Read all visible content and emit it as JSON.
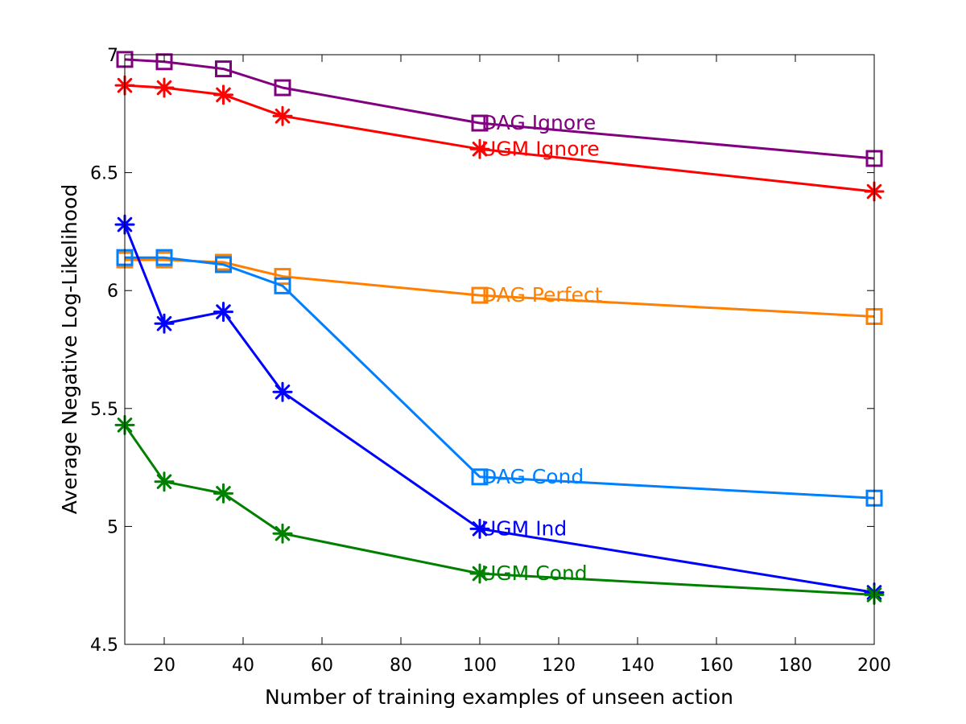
{
  "chart_data": {
    "type": "line",
    "title": "",
    "xlabel": "Number of training examples of unseen action",
    "ylabel": "Average Negative Log-Likelihood",
    "xlim": [
      10,
      200
    ],
    "ylim": [
      4.5,
      7
    ],
    "xticks": [
      20,
      40,
      60,
      80,
      100,
      120,
      140,
      160,
      180,
      200
    ],
    "yticks": [
      4.5,
      5,
      5.5,
      6,
      6.5,
      7
    ],
    "xtick_labels": [
      "20",
      "40",
      "60",
      "80",
      "100",
      "120",
      "140",
      "160",
      "180",
      "200"
    ],
    "ytick_labels": [
      "4.5",
      "5",
      "5.5",
      "6",
      "6.5",
      "7"
    ],
    "grid": false,
    "legend": "none",
    "series": [
      {
        "name": "DAG Ignore",
        "color": "#800080",
        "marker": "square",
        "x": [
          10,
          20,
          35,
          50,
          100,
          200
        ],
        "values": [
          6.98,
          6.97,
          6.94,
          6.86,
          6.71,
          6.56
        ]
      },
      {
        "name": "UGM Ignore",
        "color": "#ff0000",
        "marker": "asterisk",
        "x": [
          10,
          20,
          35,
          50,
          100,
          200
        ],
        "values": [
          6.87,
          6.86,
          6.83,
          6.74,
          6.6,
          6.42
        ]
      },
      {
        "name": "DAG Perfect",
        "color": "#ff8000",
        "marker": "square",
        "x": [
          10,
          20,
          35,
          50,
          100,
          200
        ],
        "values": [
          6.13,
          6.13,
          6.12,
          6.06,
          5.98,
          5.89
        ]
      },
      {
        "name": "DAG Cond",
        "color": "#0080ff",
        "marker": "square",
        "x": [
          10,
          20,
          35,
          50,
          100,
          200
        ],
        "values": [
          6.14,
          6.14,
          6.11,
          6.02,
          5.21,
          5.12
        ]
      },
      {
        "name": "UGM Ind",
        "color": "#0000ff",
        "marker": "asterisk",
        "x": [
          10,
          20,
          35,
          50,
          100,
          200
        ],
        "values": [
          6.28,
          5.86,
          5.91,
          5.57,
          4.99,
          4.72
        ]
      },
      {
        "name": "UGM Cond",
        "color": "#008000",
        "marker": "asterisk",
        "x": [
          10,
          20,
          35,
          50,
          100,
          200
        ],
        "values": [
          5.43,
          5.19,
          5.14,
          4.97,
          4.8,
          4.71
        ]
      }
    ]
  }
}
